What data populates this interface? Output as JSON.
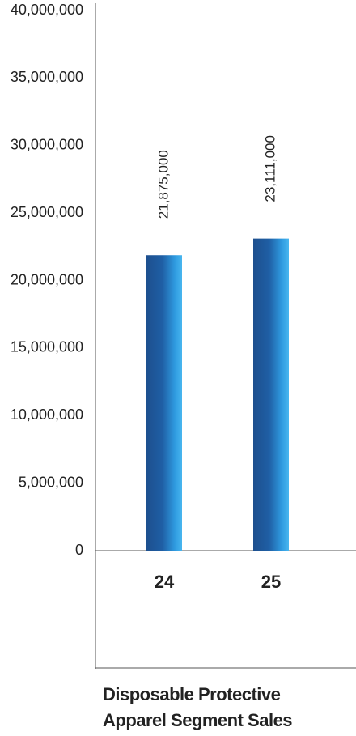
{
  "chart_data": {
    "type": "bar",
    "title": "Disposable Protective Apparel Segment Sales",
    "categories": [
      "24",
      "25"
    ],
    "values": [
      21875000,
      23111000
    ],
    "value_labels": [
      "21,875,000",
      "23,111,000"
    ],
    "ylim": [
      0,
      40000000
    ],
    "yticks": [
      0,
      {
        "value": 5000000,
        "label": "5,000,000"
      },
      {
        "value": 10000000,
        "label": "10,000,000"
      },
      {
        "value": 15000000,
        "label": "15,000,000"
      },
      {
        "value": 20000000,
        "label": "20,000,000"
      },
      {
        "value": 25000000,
        "label": "25,000,000"
      },
      {
        "value": 30000000,
        "label": "30,000,000"
      },
      {
        "value": 35000000,
        "label": "35,000,000"
      },
      {
        "value": 40000000,
        "label": "40,000,000"
      }
    ]
  }
}
